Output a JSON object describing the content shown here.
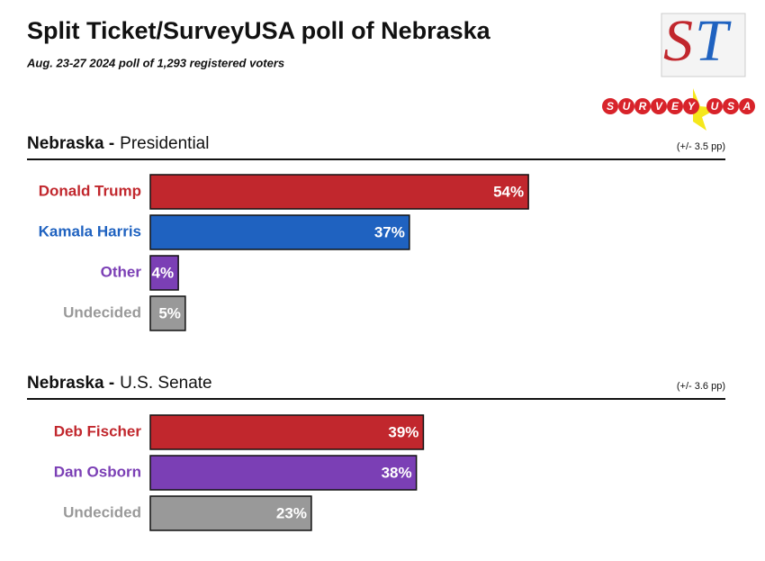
{
  "header": {
    "title": "Split Ticket/SurveyUSA poll of Nebraska",
    "subtitle": "Aug. 23-27 2024 poll of 1,293 registered voters",
    "logo_st": [
      "S",
      "T"
    ],
    "logo_surveyusa": [
      "S",
      "U",
      "R",
      "V",
      "E",
      "Y",
      "U",
      "S",
      "A"
    ]
  },
  "chart_data": [
    {
      "type": "bar",
      "orientation": "horizontal",
      "title_prefix": "Nebraska -",
      "title": "Presidential",
      "margin_of_error": "(+/- 3.5 pp)",
      "categories": [
        "Donald Trump",
        "Kamala Harris",
        "Other",
        "Undecided"
      ],
      "values": [
        54,
        37,
        4,
        5
      ],
      "value_labels": [
        "54%",
        "37%",
        "4%",
        "5%"
      ],
      "colors": [
        "#c1272d",
        "#1f62c0",
        "#7b3fb5",
        "#999999"
      ]
    },
    {
      "type": "bar",
      "orientation": "horizontal",
      "title_prefix": "Nebraska -",
      "title": "U.S. Senate",
      "margin_of_error": "(+/- 3.6 pp)",
      "categories": [
        "Deb Fischer",
        "Dan Osborn",
        "Undecided"
      ],
      "values": [
        39,
        38,
        23
      ],
      "value_labels": [
        "39%",
        "38%",
        "23%"
      ],
      "colors": [
        "#c1272d",
        "#7b3fb5",
        "#999999"
      ]
    }
  ]
}
